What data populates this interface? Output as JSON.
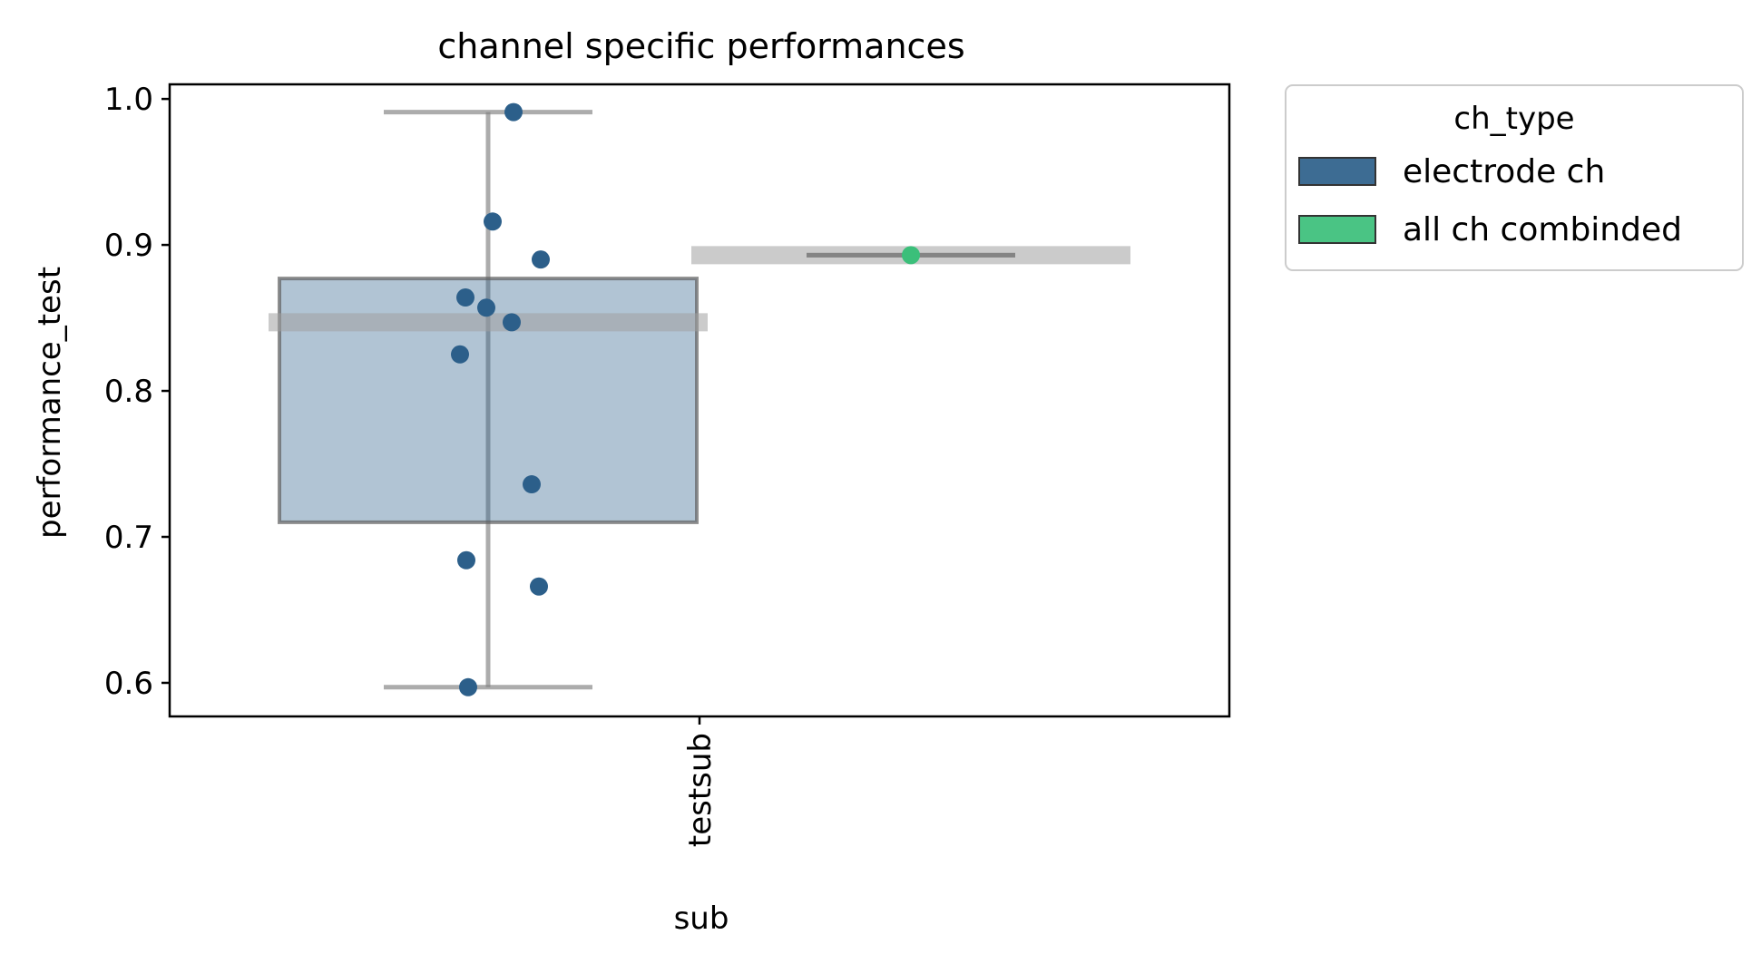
{
  "chart_data": {
    "type": "box",
    "title": "channel specific performances",
    "xlabel": "sub",
    "ylabel": "performance_test",
    "categories": [
      "testsub"
    ],
    "ylim": [
      0.577,
      1.01
    ],
    "yticks": [
      0.6,
      0.7,
      0.8,
      0.9,
      1.0
    ],
    "ytick_labels": [
      "0.6",
      "0.7",
      "0.8",
      "0.9",
      "1.0"
    ],
    "grid": false,
    "legend": {
      "title": "ch_type",
      "placement": "outside-top-right",
      "entries": [
        "electrode ch",
        "all ch combinded"
      ]
    },
    "series": [
      {
        "name": "electrode ch",
        "color": "#2c5f8a",
        "box": {
          "whislo": 0.597,
          "q1": 0.71,
          "median": 0.847,
          "q3": 0.877,
          "whishi": 0.991
        },
        "points": [
          0.991,
          0.916,
          0.89,
          0.864,
          0.857,
          0.847,
          0.825,
          0.736,
          0.684,
          0.666,
          0.597
        ]
      },
      {
        "name": "all ch combinded",
        "color": "#3bbf7a",
        "box": {
          "whislo": 0.893,
          "q1": 0.893,
          "median": 0.893,
          "q3": 0.893,
          "whishi": 0.893
        },
        "points": [
          0.893
        ]
      }
    ]
  }
}
